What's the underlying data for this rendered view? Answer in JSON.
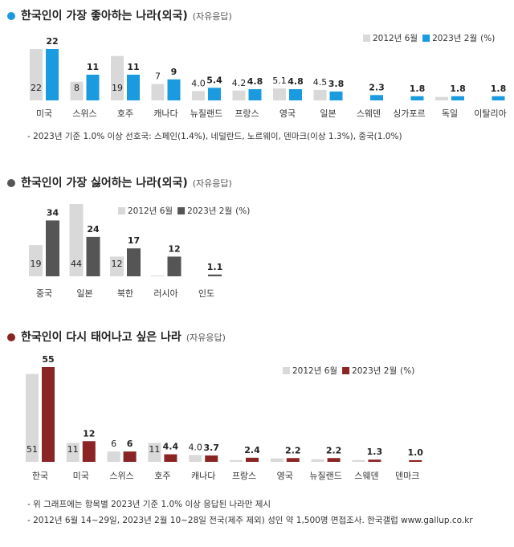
{
  "chart_data": [
    {
      "type": "bar",
      "title": "한국인이 가장 좋아하는 나라(외국)",
      "subtitle": "(자유응답)",
      "unit": "(%)",
      "categories": [
        "미국",
        "스위스",
        "호주",
        "캐나다",
        "뉴질랜드",
        "프랑스",
        "영국",
        "일본",
        "스웨덴",
        "싱가포르",
        "독일",
        "이탈리아"
      ],
      "series": [
        {
          "name": "2012년 6월",
          "color": "#d9d9d9",
          "label_color": "#7f7f7f",
          "values": [
            22,
            8,
            19,
            7,
            4,
            4.2,
            5.1,
            4.5,
            null,
            null,
            1.5,
            null
          ],
          "value_labels": [
            "22",
            "8",
            "19",
            "7",
            "4.0",
            "4.2",
            "5.1",
            "4.5",
            null,
            null,
            null,
            null
          ]
        },
        {
          "name": "2023년 2월",
          "color": "#1a9be0",
          "label_color": "#1a9be0",
          "values": [
            22,
            11,
            11,
            9,
            5.4,
            4.8,
            4.8,
            3.8,
            2.3,
            1.8,
            1.8,
            1.8
          ],
          "value_labels": [
            "22",
            "11",
            "11",
            "9",
            "5.4",
            "4.8",
            "4.8",
            "3.8",
            "2.3",
            "1.8",
            "1.8",
            "1.8"
          ]
        }
      ],
      "notes": [
        "- 2023년 기준 1.0% 이상 선호국: 스페인(1.4%), 네덜란드, 노르웨이, 덴마크(이상 1.3%), 중국(1.0%)"
      ]
    },
    {
      "type": "bar",
      "title": "한국인이 가장 싫어하는 나라(외국)",
      "subtitle": "(자유응답)",
      "unit": "(%)",
      "categories": [
        "중국",
        "일본",
        "북한",
        "러시아",
        "인도"
      ],
      "series": [
        {
          "name": "2012년 6월",
          "color": "#d9d9d9",
          "label_color": "#7f7f7f",
          "values": [
            19,
            44,
            12,
            0.5,
            null
          ],
          "value_labels": [
            "19",
            "44",
            "12",
            null,
            null
          ]
        },
        {
          "name": "2023년 2월",
          "color": "#555555",
          "label_color": "#444444",
          "values": [
            34,
            24,
            17,
            12,
            1.1
          ],
          "value_labels": [
            "34",
            "24",
            "17",
            "12",
            "1.1"
          ]
        }
      ],
      "notes": []
    },
    {
      "type": "bar",
      "title": "한국인이 다시 태어나고 싶은 나라",
      "subtitle": "(자유응답)",
      "unit": "(%)",
      "categories": [
        "한국",
        "미국",
        "스위스",
        "호주",
        "캐나다",
        "프랑스",
        "영국",
        "뉴질랜드",
        "스웨덴",
        "덴마크"
      ],
      "series": [
        {
          "name": "2012년 6월",
          "color": "#d9d9d9",
          "label_color": "#7f7f7f",
          "values": [
            51,
            11,
            6,
            11,
            4,
            1,
            2,
            1.5,
            1,
            null
          ],
          "value_labels": [
            "51",
            "11",
            "6",
            "11",
            "4.0",
            null,
            null,
            null,
            null,
            null
          ]
        },
        {
          "name": "2023년 2월",
          "color": "#8b2525",
          "label_color": "#8b2525",
          "values": [
            55,
            12,
            6,
            4.4,
            3.7,
            2.4,
            2.2,
            2.2,
            1.3,
            1
          ],
          "value_labels": [
            "55",
            "12",
            "6",
            "4.4",
            "3.7",
            "2.4",
            "2.2",
            "2.2",
            "1.3",
            "1.0"
          ]
        }
      ],
      "notes": [
        "- 위 그래프에는 항목별 2023년 기준 1.0% 이상 응답된 나라만 제시",
        "- 2012년 6월 14~29일, 2023년 2월 10~28일 전국(제주 제외) 성인 약 1,500명 면접조사. 한국갤럽 www.gallup.co.kr"
      ]
    }
  ]
}
